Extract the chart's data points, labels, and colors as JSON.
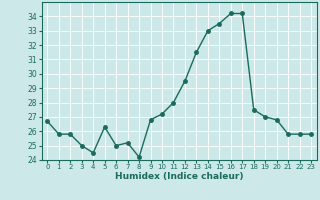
{
  "humidex_values": [
    26.7,
    25.8,
    25.8,
    25.0,
    24.5,
    26.3,
    25.0,
    25.2,
    24.2,
    26.8,
    27.2,
    28.0,
    29.5,
    31.5,
    33.0,
    33.5,
    34.2,
    34.2,
    27.5,
    27.0,
    26.8,
    25.8,
    25.8,
    25.8
  ],
  "xlabel": "Humidex (Indice chaleur)",
  "ylim": [
    24,
    35
  ],
  "xlim": [
    -0.5,
    23.5
  ],
  "yticks": [
    24,
    25,
    26,
    27,
    28,
    29,
    30,
    31,
    32,
    33,
    34
  ],
  "xticks": [
    0,
    1,
    2,
    3,
    4,
    5,
    6,
    7,
    8,
    9,
    10,
    11,
    12,
    13,
    14,
    15,
    16,
    17,
    18,
    19,
    20,
    21,
    22,
    23
  ],
  "line_color": "#1a6b5e",
  "bg_color": "#cce8e8",
  "grid_color": "#ffffff",
  "marker_size": 2.5,
  "line_width": 1.0
}
